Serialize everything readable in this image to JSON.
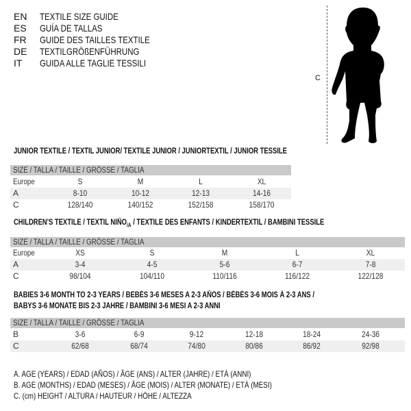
{
  "header": {
    "languages": [
      {
        "code": "EN",
        "title": "TEXTILE SIZE GUIDE"
      },
      {
        "code": "ES",
        "title": "GUÍA DE TALLAS"
      },
      {
        "code": "FR",
        "title": "GUIDE DES TAILLES TEXTILE"
      },
      {
        "code": "DE",
        "title": "TEXTILGRÖßENFÜHRUNG"
      },
      {
        "code": "IT",
        "title": "GUIDA ALLE TAGLIE TESSILI"
      }
    ]
  },
  "figure": {
    "measure_label": "C",
    "icon": "child-silhouette-icon"
  },
  "junior": {
    "title": "JUNIOR TEXTILE / TEXTIL JUNIOR/ TEXTILE JUNIOR / JUNIORTEXTIL / JUNIOR TESSILE",
    "header": "SIZE / TALLA / TAILLE / GRÖSSE / TAGLIA",
    "rows": [
      {
        "label": "Europe",
        "values": [
          "S",
          "M",
          "L",
          "XL"
        ]
      },
      {
        "label": "A",
        "values": [
          "8-10",
          "10-12",
          "12-13",
          "14-16"
        ]
      },
      {
        "label": "C",
        "values": [
          "128/140",
          "140/152",
          "152/158",
          "158/170"
        ]
      }
    ]
  },
  "children": {
    "title": "CHILDREN'S TEXTILE / TEXTIL NIÑO",
    "title_sub": "/A",
    "title_rest": " / TEXTILE DES ENFANTS / KINDERTEXTIL / BAMBINI TESSILE",
    "header": "SIZE / TALLA / TAILLE / GRÖSSE / TAGLIA",
    "rows": [
      {
        "label": "Europe",
        "values": [
          "XS",
          "S",
          "M",
          "L",
          "XL"
        ]
      },
      {
        "label": "A",
        "values": [
          "3-4",
          "4-5",
          "5-6",
          "6-7",
          "7-8"
        ]
      },
      {
        "label": "C",
        "values": [
          "98/104",
          "104/110",
          "110/116",
          "116/122",
          "122/128"
        ]
      }
    ]
  },
  "babies": {
    "title_line1": "BABIES 3-6 MONTH TO 2-3 YEARS / BEBÉS 3-6 MESES A 2-3 AÑOS / BÉBÉS 3-6 MOIS À 2-3 ANS /",
    "title_line2": "BABYS 3-6 MONATE BIS 2-3 JAHRE / BAMBINI 3-6 MESI A 2-3 ANNI",
    "header": "SIZE / TALLA / TAILLE / GRÖSSE / TAGLIA",
    "rows": [
      {
        "label": "B",
        "values": [
          "3-6",
          "6-9",
          "9-12",
          "12-18",
          "18-24",
          "24-36"
        ]
      },
      {
        "label": "C",
        "values": [
          "62/68",
          "68/74",
          "74/80",
          "80/86",
          "86/92",
          "92/98"
        ]
      }
    ]
  },
  "legend": [
    "A. AGE (YEARS) / EDAD (AÑOS) / ÂGE (ANS) / ALTER (JAHRE) / ETÀ (ANNI)",
    "B. AGE (MONTHS) / EDAD (MESES) / ÂGE (MOIS) / ALTER (MONATE) / ETÀ (MESI)",
    "C. (cm) HEIGHT / ALTURA / HAUTEUR / HÖHE / ALTEZZA"
  ]
}
